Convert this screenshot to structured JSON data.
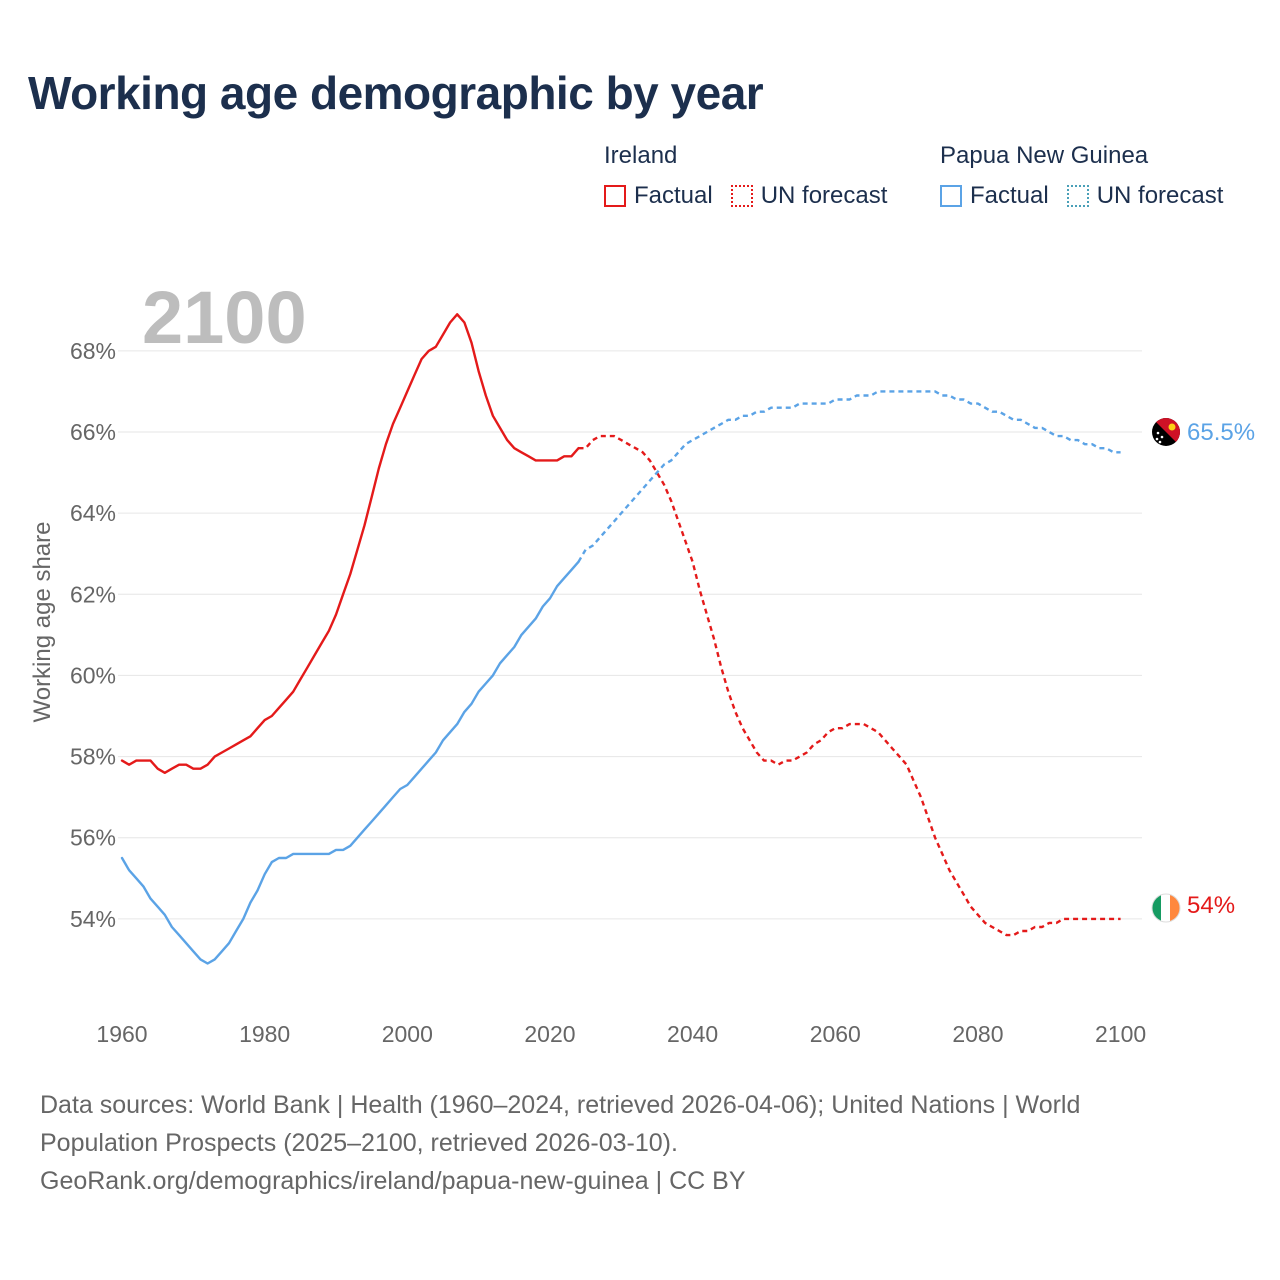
{
  "title": "Working age demographic by year",
  "legend": {
    "groups": [
      {
        "name": "Ireland",
        "factual_label": "Factual",
        "forecast_label": "UN forecast"
      },
      {
        "name": "Papua New Guinea",
        "factual_label": "Factual",
        "forecast_label": "UN forecast"
      }
    ]
  },
  "footer": {
    "line1": "Data sources: World Bank | Health (1960–2024, retrieved 2026-04-06); United Nations | World",
    "line2": "Population Prospects (2025–2100, retrieved 2026-03-10).",
    "line3": "GeoRank.org/demographics/ireland/papua-new-guinea | CC BY"
  },
  "colors": {
    "ireland": "#e41a1a",
    "png": "#5ba3e6",
    "grid": "#e6e6e6",
    "axis_text": "#666666",
    "year_watermark": "#bdbdbd"
  },
  "chart_data": {
    "type": "line",
    "year_label": "2100",
    "ylabel": "Working age share",
    "xlabel": "",
    "xlim": [
      1960,
      2103
    ],
    "ylim": [
      52,
      69.5
    ],
    "x_ticks": [
      1960,
      1980,
      2000,
      2020,
      2040,
      2060,
      2080,
      2100
    ],
    "y_ticks": [
      54,
      56,
      58,
      60,
      62,
      64,
      66,
      68
    ],
    "y_tick_suffix": "%",
    "forecast_start": 2024,
    "series": [
      {
        "name": "Ireland",
        "end_label": "54%",
        "flag_icon": "ireland-flag-icon",
        "points": [
          [
            1960,
            57.9
          ],
          [
            1961,
            57.8
          ],
          [
            1962,
            57.9
          ],
          [
            1963,
            57.9
          ],
          [
            1964,
            57.9
          ],
          [
            1965,
            57.7
          ],
          [
            1966,
            57.6
          ],
          [
            1967,
            57.7
          ],
          [
            1968,
            57.8
          ],
          [
            1969,
            57.8
          ],
          [
            1970,
            57.7
          ],
          [
            1971,
            57.7
          ],
          [
            1972,
            57.8
          ],
          [
            1973,
            58.0
          ],
          [
            1974,
            58.1
          ],
          [
            1975,
            58.2
          ],
          [
            1976,
            58.3
          ],
          [
            1977,
            58.4
          ],
          [
            1978,
            58.5
          ],
          [
            1979,
            58.7
          ],
          [
            1980,
            58.9
          ],
          [
            1981,
            59.0
          ],
          [
            1982,
            59.2
          ],
          [
            1983,
            59.4
          ],
          [
            1984,
            59.6
          ],
          [
            1985,
            59.9
          ],
          [
            1986,
            60.2
          ],
          [
            1987,
            60.5
          ],
          [
            1988,
            60.8
          ],
          [
            1989,
            61.1
          ],
          [
            1990,
            61.5
          ],
          [
            1991,
            62.0
          ],
          [
            1992,
            62.5
          ],
          [
            1993,
            63.1
          ],
          [
            1994,
            63.7
          ],
          [
            1995,
            64.4
          ],
          [
            1996,
            65.1
          ],
          [
            1997,
            65.7
          ],
          [
            1998,
            66.2
          ],
          [
            1999,
            66.6
          ],
          [
            2000,
            67.0
          ],
          [
            2001,
            67.4
          ],
          [
            2002,
            67.8
          ],
          [
            2003,
            68.0
          ],
          [
            2004,
            68.1
          ],
          [
            2005,
            68.4
          ],
          [
            2006,
            68.7
          ],
          [
            2007,
            68.9
          ],
          [
            2008,
            68.7
          ],
          [
            2009,
            68.2
          ],
          [
            2010,
            67.5
          ],
          [
            2011,
            66.9
          ],
          [
            2012,
            66.4
          ],
          [
            2013,
            66.1
          ],
          [
            2014,
            65.8
          ],
          [
            2015,
            65.6
          ],
          [
            2016,
            65.5
          ],
          [
            2017,
            65.4
          ],
          [
            2018,
            65.3
          ],
          [
            2019,
            65.3
          ],
          [
            2020,
            65.3
          ],
          [
            2021,
            65.3
          ],
          [
            2022,
            65.4
          ],
          [
            2023,
            65.4
          ],
          [
            2024,
            65.6
          ],
          [
            2025,
            65.6
          ],
          [
            2026,
            65.8
          ],
          [
            2027,
            65.9
          ],
          [
            2028,
            65.9
          ],
          [
            2029,
            65.9
          ],
          [
            2030,
            65.8
          ],
          [
            2031,
            65.7
          ],
          [
            2032,
            65.6
          ],
          [
            2033,
            65.5
          ],
          [
            2034,
            65.3
          ],
          [
            2035,
            65.0
          ],
          [
            2036,
            64.7
          ],
          [
            2037,
            64.3
          ],
          [
            2038,
            63.8
          ],
          [
            2039,
            63.3
          ],
          [
            2040,
            62.8
          ],
          [
            2041,
            62.1
          ],
          [
            2042,
            61.5
          ],
          [
            2043,
            60.9
          ],
          [
            2044,
            60.2
          ],
          [
            2045,
            59.6
          ],
          [
            2046,
            59.1
          ],
          [
            2047,
            58.7
          ],
          [
            2048,
            58.4
          ],
          [
            2049,
            58.1
          ],
          [
            2050,
            57.9
          ],
          [
            2051,
            57.9
          ],
          [
            2052,
            57.8
          ],
          [
            2053,
            57.9
          ],
          [
            2054,
            57.9
          ],
          [
            2055,
            58.0
          ],
          [
            2056,
            58.1
          ],
          [
            2057,
            58.3
          ],
          [
            2058,
            58.4
          ],
          [
            2059,
            58.6
          ],
          [
            2060,
            58.7
          ],
          [
            2061,
            58.7
          ],
          [
            2062,
            58.8
          ],
          [
            2063,
            58.8
          ],
          [
            2064,
            58.8
          ],
          [
            2065,
            58.7
          ],
          [
            2066,
            58.6
          ],
          [
            2067,
            58.4
          ],
          [
            2068,
            58.2
          ],
          [
            2069,
            58.0
          ],
          [
            2070,
            57.8
          ],
          [
            2071,
            57.4
          ],
          [
            2072,
            57.0
          ],
          [
            2073,
            56.5
          ],
          [
            2074,
            56.0
          ],
          [
            2075,
            55.6
          ],
          [
            2076,
            55.2
          ],
          [
            2077,
            54.9
          ],
          [
            2078,
            54.6
          ],
          [
            2079,
            54.3
          ],
          [
            2080,
            54.1
          ],
          [
            2081,
            53.9
          ],
          [
            2082,
            53.8
          ],
          [
            2083,
            53.7
          ],
          [
            2084,
            53.6
          ],
          [
            2085,
            53.6
          ],
          [
            2086,
            53.7
          ],
          [
            2087,
            53.7
          ],
          [
            2088,
            53.8
          ],
          [
            2089,
            53.8
          ],
          [
            2090,
            53.9
          ],
          [
            2091,
            53.9
          ],
          [
            2092,
            54.0
          ],
          [
            2093,
            54.0
          ],
          [
            2094,
            54.0
          ],
          [
            2095,
            54.0
          ],
          [
            2100,
            54.0
          ]
        ]
      },
      {
        "name": "Papua New Guinea",
        "end_label": "65.5%",
        "flag_icon": "papua-new-guinea-flag-icon",
        "points": [
          [
            1960,
            55.5
          ],
          [
            1961,
            55.2
          ],
          [
            1962,
            55.0
          ],
          [
            1963,
            54.8
          ],
          [
            1964,
            54.5
          ],
          [
            1965,
            54.3
          ],
          [
            1966,
            54.1
          ],
          [
            1967,
            53.8
          ],
          [
            1968,
            53.6
          ],
          [
            1969,
            53.4
          ],
          [
            1970,
            53.2
          ],
          [
            1971,
            53.0
          ],
          [
            1972,
            52.9
          ],
          [
            1973,
            53.0
          ],
          [
            1974,
            53.2
          ],
          [
            1975,
            53.4
          ],
          [
            1976,
            53.7
          ],
          [
            1977,
            54.0
          ],
          [
            1978,
            54.4
          ],
          [
            1979,
            54.7
          ],
          [
            1980,
            55.1
          ],
          [
            1981,
            55.4
          ],
          [
            1982,
            55.5
          ],
          [
            1983,
            55.5
          ],
          [
            1984,
            55.6
          ],
          [
            1985,
            55.6
          ],
          [
            1986,
            55.6
          ],
          [
            1987,
            55.6
          ],
          [
            1988,
            55.6
          ],
          [
            1989,
            55.6
          ],
          [
            1990,
            55.7
          ],
          [
            1991,
            55.7
          ],
          [
            1992,
            55.8
          ],
          [
            1993,
            56.0
          ],
          [
            1994,
            56.2
          ],
          [
            1995,
            56.4
          ],
          [
            1996,
            56.6
          ],
          [
            1997,
            56.8
          ],
          [
            1998,
            57.0
          ],
          [
            1999,
            57.2
          ],
          [
            2000,
            57.3
          ],
          [
            2001,
            57.5
          ],
          [
            2002,
            57.7
          ],
          [
            2003,
            57.9
          ],
          [
            2004,
            58.1
          ],
          [
            2005,
            58.4
          ],
          [
            2006,
            58.6
          ],
          [
            2007,
            58.8
          ],
          [
            2008,
            59.1
          ],
          [
            2009,
            59.3
          ],
          [
            2010,
            59.6
          ],
          [
            2011,
            59.8
          ],
          [
            2012,
            60.0
          ],
          [
            2013,
            60.3
          ],
          [
            2014,
            60.5
          ],
          [
            2015,
            60.7
          ],
          [
            2016,
            61.0
          ],
          [
            2017,
            61.2
          ],
          [
            2018,
            61.4
          ],
          [
            2019,
            61.7
          ],
          [
            2020,
            61.9
          ],
          [
            2021,
            62.2
          ],
          [
            2022,
            62.4
          ],
          [
            2023,
            62.6
          ],
          [
            2024,
            62.8
          ],
          [
            2025,
            63.1
          ],
          [
            2026,
            63.2
          ],
          [
            2027,
            63.4
          ],
          [
            2028,
            63.6
          ],
          [
            2029,
            63.8
          ],
          [
            2030,
            64.0
          ],
          [
            2031,
            64.2
          ],
          [
            2032,
            64.4
          ],
          [
            2033,
            64.6
          ],
          [
            2034,
            64.8
          ],
          [
            2035,
            65.0
          ],
          [
            2036,
            65.2
          ],
          [
            2037,
            65.3
          ],
          [
            2038,
            65.5
          ],
          [
            2039,
            65.7
          ],
          [
            2040,
            65.8
          ],
          [
            2041,
            65.9
          ],
          [
            2042,
            66.0
          ],
          [
            2043,
            66.1
          ],
          [
            2044,
            66.2
          ],
          [
            2045,
            66.3
          ],
          [
            2046,
            66.3
          ],
          [
            2047,
            66.4
          ],
          [
            2048,
            66.4
          ],
          [
            2049,
            66.5
          ],
          [
            2050,
            66.5
          ],
          [
            2051,
            66.6
          ],
          [
            2052,
            66.6
          ],
          [
            2053,
            66.6
          ],
          [
            2054,
            66.6
          ],
          [
            2055,
            66.7
          ],
          [
            2056,
            66.7
          ],
          [
            2057,
            66.7
          ],
          [
            2058,
            66.7
          ],
          [
            2059,
            66.7
          ],
          [
            2060,
            66.8
          ],
          [
            2061,
            66.8
          ],
          [
            2062,
            66.8
          ],
          [
            2063,
            66.9
          ],
          [
            2064,
            66.9
          ],
          [
            2065,
            66.9
          ],
          [
            2066,
            67.0
          ],
          [
            2067,
            67.0
          ],
          [
            2068,
            67.0
          ],
          [
            2069,
            67.0
          ],
          [
            2070,
            67.0
          ],
          [
            2071,
            67.0
          ],
          [
            2072,
            67.0
          ],
          [
            2073,
            67.0
          ],
          [
            2074,
            67.0
          ],
          [
            2075,
            66.9
          ],
          [
            2076,
            66.9
          ],
          [
            2077,
            66.8
          ],
          [
            2078,
            66.8
          ],
          [
            2079,
            66.7
          ],
          [
            2080,
            66.7
          ],
          [
            2081,
            66.6
          ],
          [
            2082,
            66.5
          ],
          [
            2083,
            66.5
          ],
          [
            2084,
            66.4
          ],
          [
            2085,
            66.3
          ],
          [
            2086,
            66.3
          ],
          [
            2087,
            66.2
          ],
          [
            2088,
            66.1
          ],
          [
            2089,
            66.1
          ],
          [
            2090,
            66.0
          ],
          [
            2091,
            65.9
          ],
          [
            2092,
            65.9
          ],
          [
            2093,
            65.8
          ],
          [
            2094,
            65.8
          ],
          [
            2095,
            65.7
          ],
          [
            2096,
            65.7
          ],
          [
            2097,
            65.6
          ],
          [
            2098,
            65.6
          ],
          [
            2099,
            65.5
          ],
          [
            2100,
            65.5
          ]
        ]
      }
    ]
  }
}
